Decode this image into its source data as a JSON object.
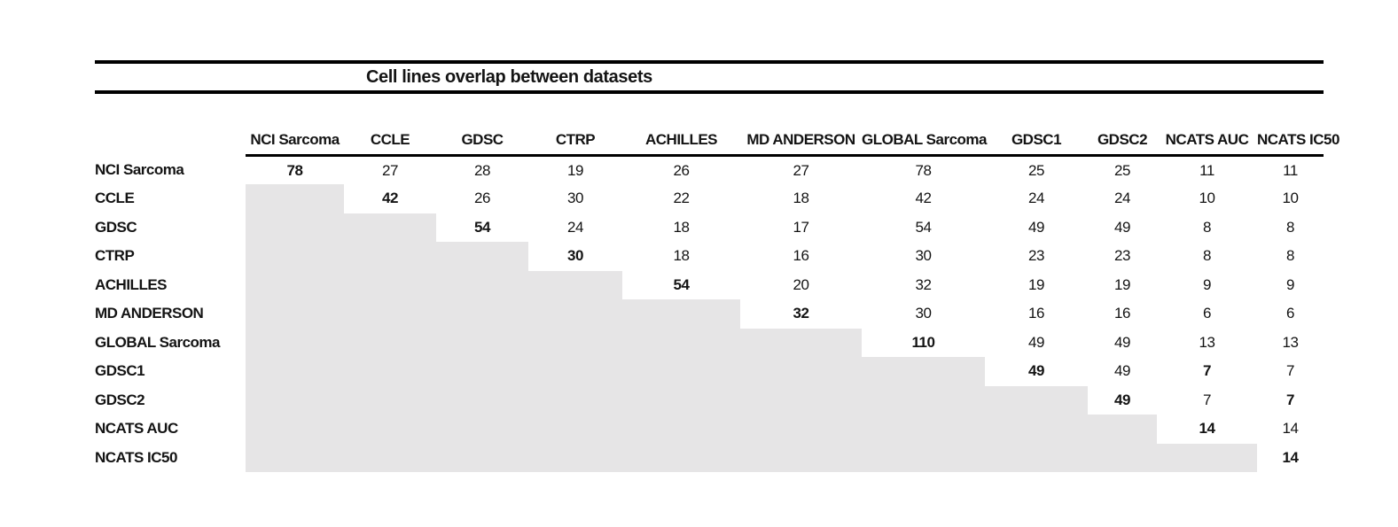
{
  "figure": {
    "title": "Cell lines overlap between datasets"
  },
  "table": {
    "columns": [
      "NCI Sarcoma",
      "CCLE",
      "GDSC",
      "CTRP",
      "ACHILLES",
      "MD ANDERSON",
      "GLOBAL Sarcoma",
      "GDSC1",
      "GDSC2",
      "NCATS AUC",
      "NCATS IC50"
    ],
    "rows": [
      {
        "label": "NCI Sarcoma",
        "values": [
          78,
          27,
          28,
          19,
          26,
          27,
          78,
          25,
          25,
          11,
          11
        ]
      },
      {
        "label": "CCLE",
        "values": [
          null,
          42,
          26,
          30,
          22,
          18,
          42,
          24,
          24,
          10,
          10
        ]
      },
      {
        "label": "GDSC",
        "values": [
          null,
          null,
          54,
          24,
          18,
          17,
          54,
          49,
          49,
          8,
          8
        ]
      },
      {
        "label": "CTRP",
        "values": [
          null,
          null,
          null,
          30,
          18,
          16,
          30,
          23,
          23,
          8,
          8
        ]
      },
      {
        "label": "ACHILLES",
        "values": [
          null,
          null,
          null,
          null,
          54,
          20,
          32,
          19,
          19,
          9,
          9
        ]
      },
      {
        "label": "MD ANDERSON",
        "values": [
          null,
          null,
          null,
          null,
          null,
          32,
          30,
          16,
          16,
          6,
          6
        ]
      },
      {
        "label": "GLOBAL Sarcoma",
        "values": [
          null,
          null,
          null,
          null,
          null,
          null,
          110,
          49,
          49,
          13,
          13
        ]
      },
      {
        "label": "GDSC1",
        "values": [
          null,
          null,
          null,
          null,
          null,
          null,
          null,
          49,
          49,
          7,
          7
        ]
      },
      {
        "label": "GDSC2",
        "values": [
          null,
          null,
          null,
          null,
          null,
          null,
          null,
          null,
          49,
          7,
          7
        ]
      },
      {
        "label": "NCATS AUC",
        "values": [
          null,
          null,
          null,
          null,
          null,
          null,
          null,
          null,
          null,
          14,
          14
        ]
      },
      {
        "label": "NCATS IC50",
        "values": [
          null,
          null,
          null,
          null,
          null,
          null,
          null,
          null,
          null,
          null,
          14
        ]
      }
    ],
    "bold_cells": [
      [
        0
      ],
      [
        1
      ],
      [
        2
      ],
      [
        3
      ],
      [
        4
      ],
      [
        5
      ],
      [
        6
      ],
      [
        7,
        9
      ],
      [
        8,
        10
      ],
      [
        9
      ],
      [
        10
      ]
    ],
    "colors": {
      "shaded": "#e6e5e6",
      "rule": "#000000",
      "text": "#141414"
    }
  },
  "chart_data": {
    "type": "table",
    "title": "Cell lines overlap between datasets",
    "categories": [
      "NCI Sarcoma",
      "CCLE",
      "GDSC",
      "CTRP",
      "ACHILLES",
      "MD ANDERSON",
      "GLOBAL Sarcoma",
      "GDSC1",
      "GDSC2",
      "NCATS AUC",
      "NCATS IC50"
    ],
    "matrix": [
      [
        78,
        27,
        28,
        19,
        26,
        27,
        78,
        25,
        25,
        11,
        11
      ],
      [
        null,
        42,
        26,
        30,
        22,
        18,
        42,
        24,
        24,
        10,
        10
      ],
      [
        null,
        null,
        54,
        24,
        18,
        17,
        54,
        49,
        49,
        8,
        8
      ],
      [
        null,
        null,
        null,
        30,
        18,
        16,
        30,
        23,
        23,
        8,
        8
      ],
      [
        null,
        null,
        null,
        null,
        54,
        20,
        32,
        19,
        19,
        9,
        9
      ],
      [
        null,
        null,
        null,
        null,
        null,
        32,
        30,
        16,
        16,
        6,
        6
      ],
      [
        null,
        null,
        null,
        null,
        null,
        null,
        110,
        49,
        49,
        13,
        13
      ],
      [
        null,
        null,
        null,
        null,
        null,
        null,
        null,
        49,
        49,
        7,
        7
      ],
      [
        null,
        null,
        null,
        null,
        null,
        null,
        null,
        null,
        49,
        7,
        7
      ],
      [
        null,
        null,
        null,
        null,
        null,
        null,
        null,
        null,
        null,
        14,
        14
      ],
      [
        null,
        null,
        null,
        null,
        null,
        null,
        null,
        null,
        null,
        null,
        14
      ]
    ],
    "layout_hints": {
      "lower_triangle": "shaded light gray with no values",
      "diagonal": "bold self-overlap counts",
      "extra_bold_cells": [
        "GDSC1 x NCATS AUC",
        "GDSC2 x NCATS IC50"
      ]
    }
  }
}
